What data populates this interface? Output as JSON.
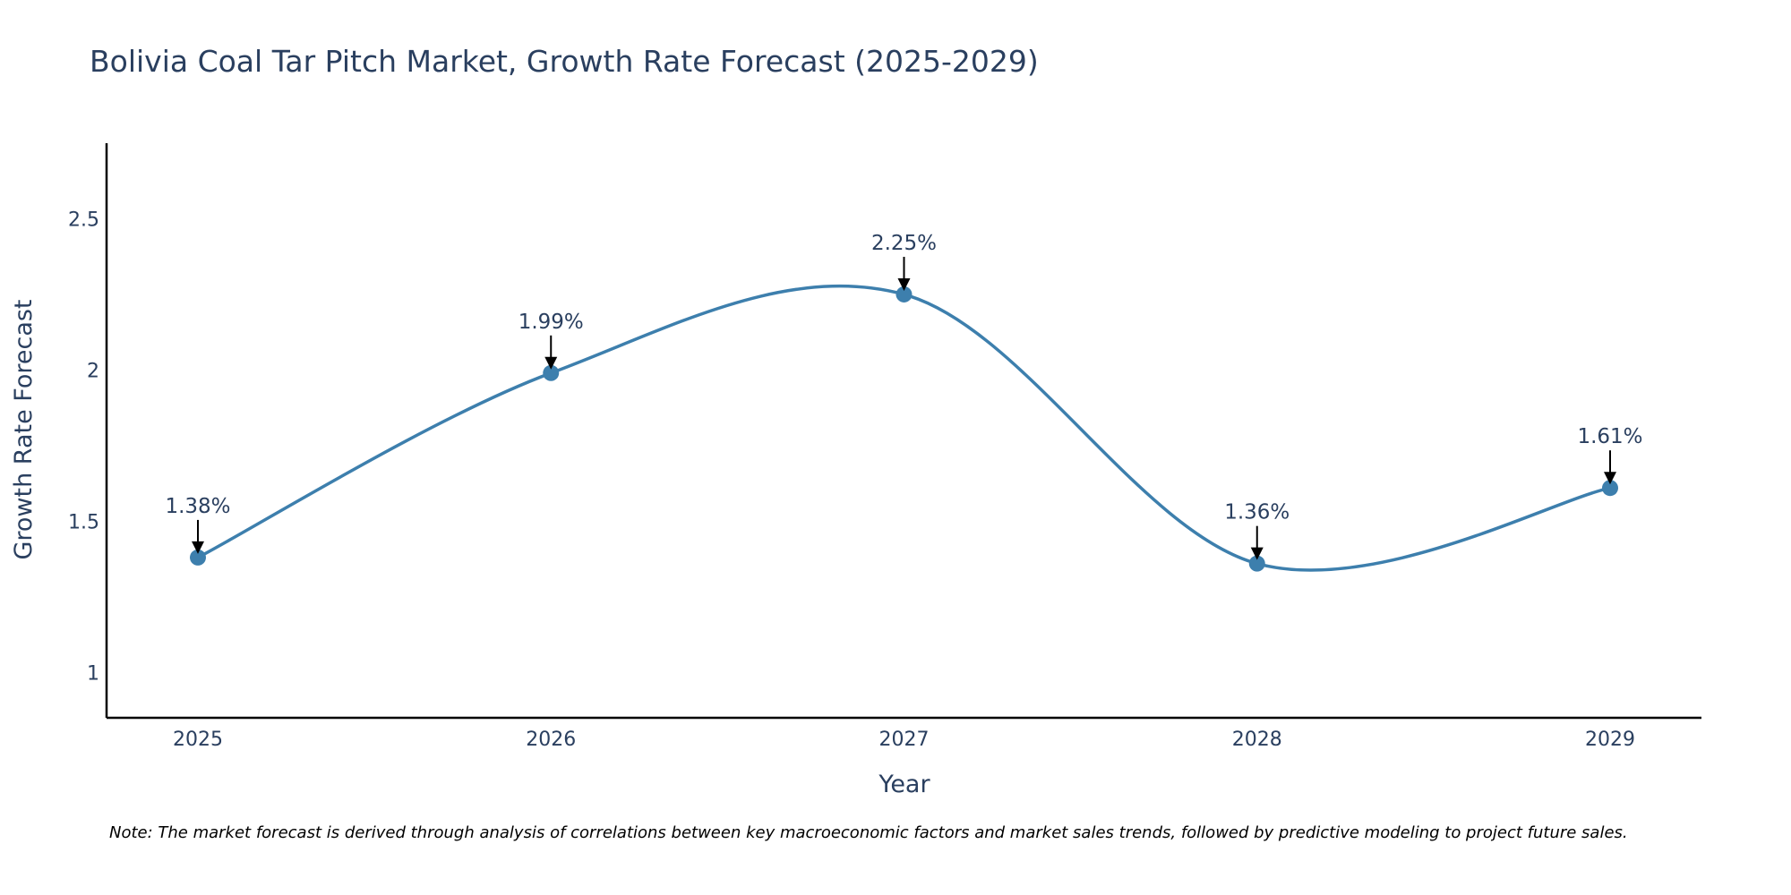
{
  "chart_data": {
    "type": "line",
    "title": "Bolivia Coal Tar Pitch Market, Growth Rate Forecast (2025-2029)",
    "xlabel": "Year",
    "ylabel": "Growth Rate Forecast",
    "categories": [
      "2025",
      "2026",
      "2027",
      "2028",
      "2029"
    ],
    "values": [
      1.38,
      1.99,
      2.25,
      1.36,
      1.61
    ],
    "data_labels": [
      "1.38%",
      "1.99%",
      "2.25%",
      "1.36%",
      "1.61%"
    ],
    "ylim": [
      0.85,
      2.75
    ],
    "yticks": [
      1,
      1.5,
      2,
      2.5
    ],
    "ytick_labels": [
      "1",
      "1.5",
      "2",
      "2.5"
    ],
    "line_shape": "spline",
    "grid": false,
    "legend": "none",
    "series_color": "#3d7fad"
  },
  "note": "Note: The market forecast is derived through analysis of correlations between key macroeconomic factors and market sales trends, followed by predictive modeling to project future sales."
}
